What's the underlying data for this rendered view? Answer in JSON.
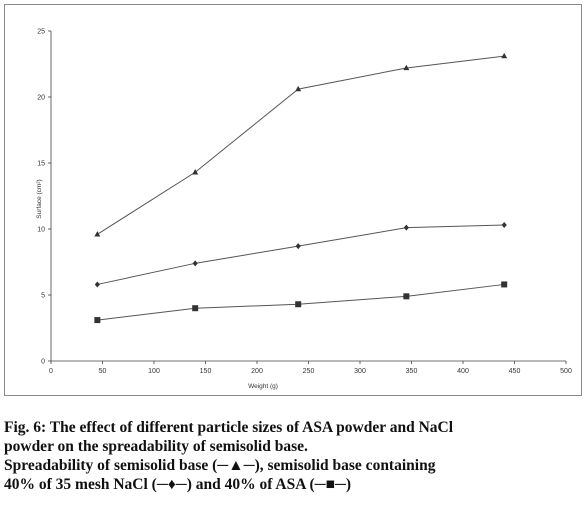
{
  "chart_data": {
    "type": "line",
    "title": "",
    "xlabel": "Weight (g)",
    "ylabel": "Surface (cm²)",
    "xlim": [
      0,
      500
    ],
    "ylim": [
      0,
      25
    ],
    "xticks": [
      "0",
      "50",
      "100",
      "150",
      "200",
      "250",
      "300",
      "350",
      "400",
      "450",
      "500"
    ],
    "yticks": [
      "0",
      "5",
      "10",
      "15",
      "20",
      "25"
    ],
    "x": [
      45,
      140,
      240,
      345,
      440
    ],
    "series": [
      {
        "marker": "triangle",
        "color": "#555555",
        "values": [
          9.6,
          14.3,
          20.6,
          22.2,
          23.1
        ]
      },
      {
        "marker": "diamond",
        "color": "#555555",
        "values": [
          5.8,
          7.4,
          8.7,
          10.1,
          10.3
        ]
      },
      {
        "marker": "square",
        "color": "#555555",
        "values": [
          3.1,
          4.0,
          4.3,
          4.9,
          5.8
        ]
      }
    ],
    "grid": false,
    "legend": "none"
  },
  "caption": {
    "line1": "Fig. 6: The effect of different particle sizes of ASA powder and NaCl",
    "line2": "powder on the spreadability of semisolid base.",
    "line3": "Spreadability of semisolid base (─▲─), semisolid base containing",
    "line4": "40% of 35 mesh NaCl (─♦─) and 40% of ASA (─■─)"
  }
}
